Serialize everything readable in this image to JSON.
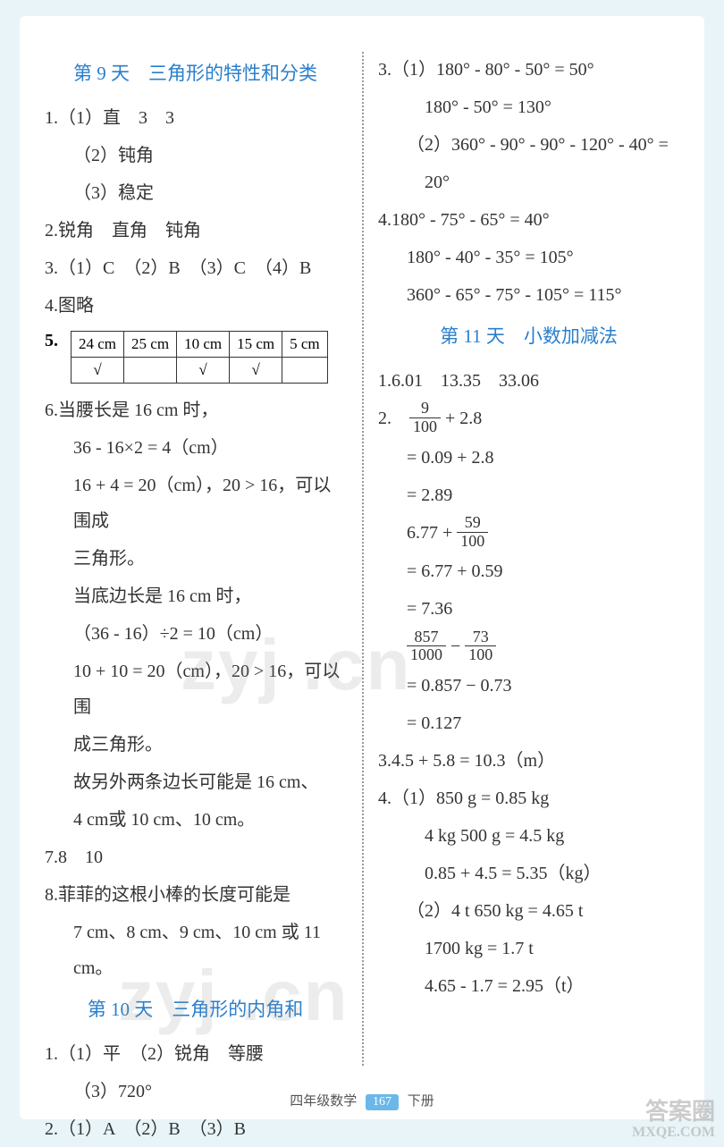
{
  "left": {
    "heading1": "第 9 天　三角形的特性和分类",
    "q1a": "1.（1）直　3　3",
    "q1b": "（2）钝角",
    "q1c": "（3）稳定",
    "q2": "2.锐角　直角　钝角",
    "q3": "3.（1）C　（2）B　（3）C　（4）B",
    "q4": "4.图略",
    "q5label": "5.",
    "q5table": {
      "r1": [
        "24 cm",
        "25 cm",
        "10 cm",
        "15 cm",
        "5 cm"
      ],
      "r2": [
        "√",
        "",
        "√",
        "√",
        ""
      ]
    },
    "q6a": "6.当腰长是 16 cm 时，",
    "q6b": "36 - 16×2 = 4（cm）",
    "q6c": "16 + 4 = 20（cm），20 > 16，可以围成",
    "q6d": "三角形。",
    "q6e": "当底边长是 16 cm 时，",
    "q6f": "（36 - 16）÷2 = 10（cm）",
    "q6g": "10 + 10 = 20（cm），20 > 16，可以围",
    "q6h": "成三角形。",
    "q6i": "故另外两条边长可能是 16 cm、",
    "q6j": "4 cm或 10 cm、10 cm。",
    "q7": "7.8　10",
    "q8a": "8.菲菲的这根小棒的长度可能是",
    "q8b": "7 cm、8 cm、9 cm、10 cm 或 11 cm。",
    "heading2": "第 10 天　三角形的内角和",
    "d10q1a": "1.（1）平　（2）锐角　等腰",
    "d10q1b": "（3）720°",
    "d10q2": "2.（1）A　（2）B　（3）B"
  },
  "right": {
    "q3a": "3.（1）180° - 80° - 50° = 50°",
    "q3b": "180° - 50° = 130°",
    "q3c": "（2）360° - 90° - 90° - 120° - 40° =",
    "q3d": "20°",
    "q4a": "4.180° - 75° - 65° = 40°",
    "q4b": "180° - 40° - 35° = 105°",
    "q4c": "360° - 65° - 75° - 105° = 115°",
    "heading3": "第 11 天　小数加减法",
    "d11q1": "1.6.01　13.35　33.06",
    "d11q2a_pre": "2.　",
    "frac1n": "9",
    "frac1d": "100",
    "d11q2a_post": " + 2.8",
    "d11q2b": "= 0.09 + 2.8",
    "d11q2c": "= 2.89",
    "d11q2d_pre": "6.77 + ",
    "frac2n": "59",
    "frac2d": "100",
    "d11q2e": "= 6.77 + 0.59",
    "d11q2f": "= 7.36",
    "frac3n": "857",
    "frac3d": "1000",
    "mid": " − ",
    "frac4n": "73",
    "frac4d": "100",
    "d11q2h": "= 0.857 − 0.73",
    "d11q2i": "= 0.127",
    "d11q3": "3.4.5 + 5.8 = 10.3（m）",
    "d11q4a": "4.（1）850 g = 0.85 kg",
    "d11q4b": "4 kg 500 g = 4.5 kg",
    "d11q4c": "0.85 + 4.5 = 5.35（kg）",
    "d11q4d": "（2）4 t 650 kg = 4.65 t",
    "d11q4e": "1700 kg = 1.7 t",
    "d11q4f": "4.65 - 1.7 = 2.95（t）"
  },
  "footer": {
    "left": "四年级数学",
    "num": "167",
    "right": "下册"
  },
  "watermark": "zyj .cn",
  "stamp1": "答案圈",
  "stamp2": "MXQE.COM"
}
